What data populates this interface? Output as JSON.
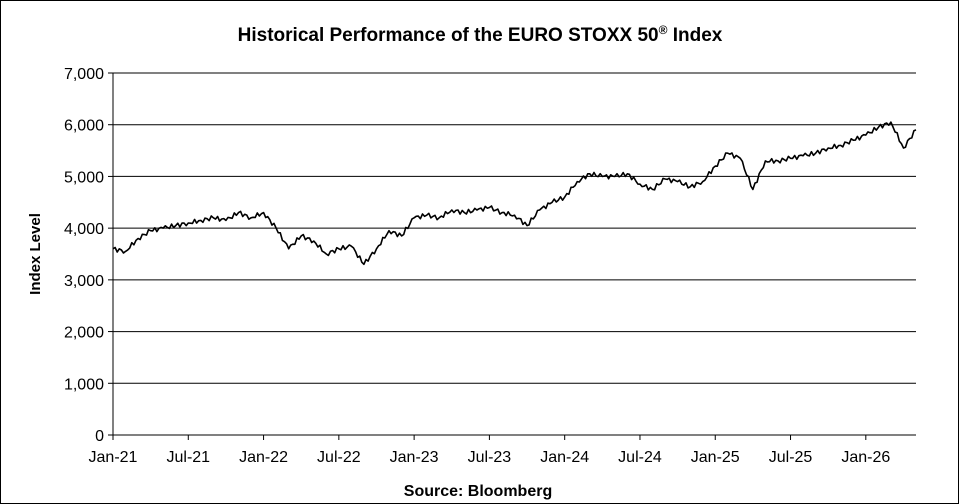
{
  "chart_data": {
    "type": "line",
    "title_main": "Historical  Performance  of the EURO STOXX 50",
    "title_sup": "®",
    "title_tail": " Index",
    "ylabel": "Index Level",
    "xlabel": "Source: Bloomberg",
    "ylim": [
      0,
      7000
    ],
    "y_ticks": [
      "0",
      "1,000",
      "2,000",
      "3,000",
      "4,000",
      "5,000",
      "6,000",
      "7,000"
    ],
    "y_tick_values": [
      0,
      1000,
      2000,
      3000,
      4000,
      5000,
      6000,
      7000
    ],
    "x_ticks": [
      "Jan-21",
      "Jul-21",
      "Jan-22",
      "Jul-22",
      "Jan-23",
      "Jul-23",
      "Jan-24",
      "Jul-24",
      "Jan-25",
      "Jul-25",
      "Jan-26"
    ],
    "x_tick_values": [
      "2021-01",
      "2021-07",
      "2022-01",
      "2022-07",
      "2023-01",
      "2023-07",
      "2024-01",
      "2024-07",
      "2025-01",
      "2025-07",
      "2026-01"
    ],
    "xlim": [
      "2021-01",
      "2026-05"
    ],
    "grid": true,
    "line_color": "#000000",
    "series": [
      {
        "x": [
          "2021-01",
          "2021-02",
          "2021-03",
          "2021-04",
          "2021-05",
          "2021-06",
          "2021-07",
          "2021-08",
          "2021-09",
          "2021-10",
          "2021-11",
          "2021-12",
          "2022-01",
          "2022-02",
          "2022-03",
          "2022-04",
          "2022-05",
          "2022-06",
          "2022-07",
          "2022-08",
          "2022-09",
          "2022-10",
          "2022-11",
          "2022-12",
          "2023-01",
          "2023-02",
          "2023-03",
          "2023-04",
          "2023-05",
          "2023-06",
          "2023-07",
          "2023-08",
          "2023-09",
          "2023-10",
          "2023-11",
          "2023-12",
          "2024-01",
          "2024-02",
          "2024-03",
          "2024-04",
          "2024-05",
          "2024-06",
          "2024-07",
          "2024-08",
          "2024-09",
          "2024-10",
          "2024-11",
          "2024-12",
          "2025-01",
          "2025-02",
          "2025-03",
          "2025-04",
          "2025-05",
          "2025-06",
          "2025-07",
          "2025-08",
          "2025-09",
          "2025-10",
          "2025-11",
          "2025-12",
          "2026-01",
          "2026-02",
          "2026-03",
          "2026-04",
          "2026-05"
        ],
        "values": [
          3600,
          3550,
          3800,
          3950,
          4000,
          4050,
          4100,
          4150,
          4200,
          4150,
          4300,
          4200,
          4300,
          4000,
          3600,
          3850,
          3750,
          3500,
          3600,
          3650,
          3300,
          3600,
          3950,
          3850,
          4200,
          4250,
          4200,
          4350,
          4300,
          4350,
          4400,
          4300,
          4250,
          4050,
          4350,
          4500,
          4600,
          4900,
          5050,
          5000,
          5000,
          5050,
          4850,
          4750,
          4950,
          4900,
          4800,
          4900,
          5200,
          5450,
          5350,
          4750,
          5300,
          5300,
          5350,
          5400,
          5450,
          5550,
          5600,
          5700,
          5800,
          5950,
          6050,
          5550,
          5900
        ]
      }
    ]
  }
}
